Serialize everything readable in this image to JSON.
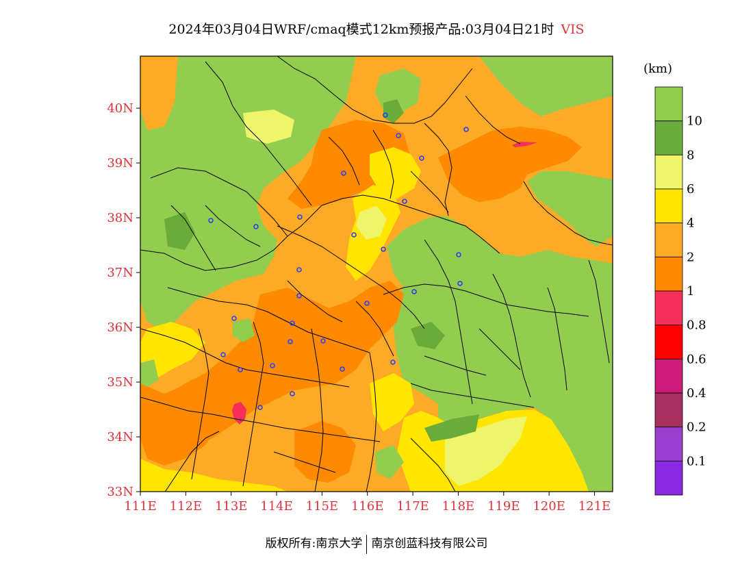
{
  "title": {
    "main": "2024年03月04日WRF/cmaq模式12km预报产品:03月04日21时",
    "variable": "VIS"
  },
  "map": {
    "lon_range": [
      111,
      121.4
    ],
    "lat_range": [
      33,
      40.95
    ],
    "lat_ticks": [
      {
        "value": 40,
        "label": "40N"
      },
      {
        "value": 39,
        "label": "39N"
      },
      {
        "value": 38,
        "label": "38N"
      },
      {
        "value": 37,
        "label": "37N"
      },
      {
        "value": 36,
        "label": "36N"
      },
      {
        "value": 35,
        "label": "35N"
      },
      {
        "value": 34,
        "label": "34N"
      },
      {
        "value": 33,
        "label": "33N"
      }
    ],
    "lon_ticks": [
      {
        "value": 111,
        "label": "111E"
      },
      {
        "value": 112,
        "label": "112E"
      },
      {
        "value": 113,
        "label": "113E"
      },
      {
        "value": 114,
        "label": "114E"
      },
      {
        "value": 115,
        "label": "115E"
      },
      {
        "value": 116,
        "label": "116E"
      },
      {
        "value": 117,
        "label": "117E"
      },
      {
        "value": 118,
        "label": "118E"
      },
      {
        "value": 119,
        "label": "119E"
      },
      {
        "value": 120,
        "label": "120E"
      },
      {
        "value": 121,
        "label": "121E"
      }
    ],
    "colors": {
      "gt10": "#92cd50",
      "c8_10": "#6aab3a",
      "c6_8": "#eef56a",
      "c4_6": "#ffe500",
      "c2_4": "#fdab26",
      "c1_2": "#fd8a00",
      "c08_1": "#f5305a",
      "c06_08": "#ff0000",
      "c04_06": "#cc1a78",
      "c02_04": "#a8305e",
      "c01_02": "#9a3fd0",
      "lt01": "#8a2ae0"
    }
  },
  "legend": {
    "unit": "(km)",
    "bins": [
      {
        "color": "#92cd50",
        "label": "10"
      },
      {
        "color": "#6aab3a",
        "label": "8"
      },
      {
        "color": "#eef56a",
        "label": "6"
      },
      {
        "color": "#ffe500",
        "label": "4"
      },
      {
        "color": "#fdab26",
        "label": "2"
      },
      {
        "color": "#fd8a00",
        "label": "1"
      },
      {
        "color": "#f5305a",
        "label": "0.8"
      },
      {
        "color": "#ff0000",
        "label": "0.6"
      },
      {
        "color": "#cc1a78",
        "label": "0.4"
      },
      {
        "color": "#a8305e",
        "label": "0.2"
      },
      {
        "color": "#9a3fd0",
        "label": "0.1"
      },
      {
        "color": "#8a2ae0",
        "label": ""
      }
    ]
  },
  "footer": {
    "left": "版权所有:南京大学",
    "right": "南京创蓝科技有限公司"
  }
}
